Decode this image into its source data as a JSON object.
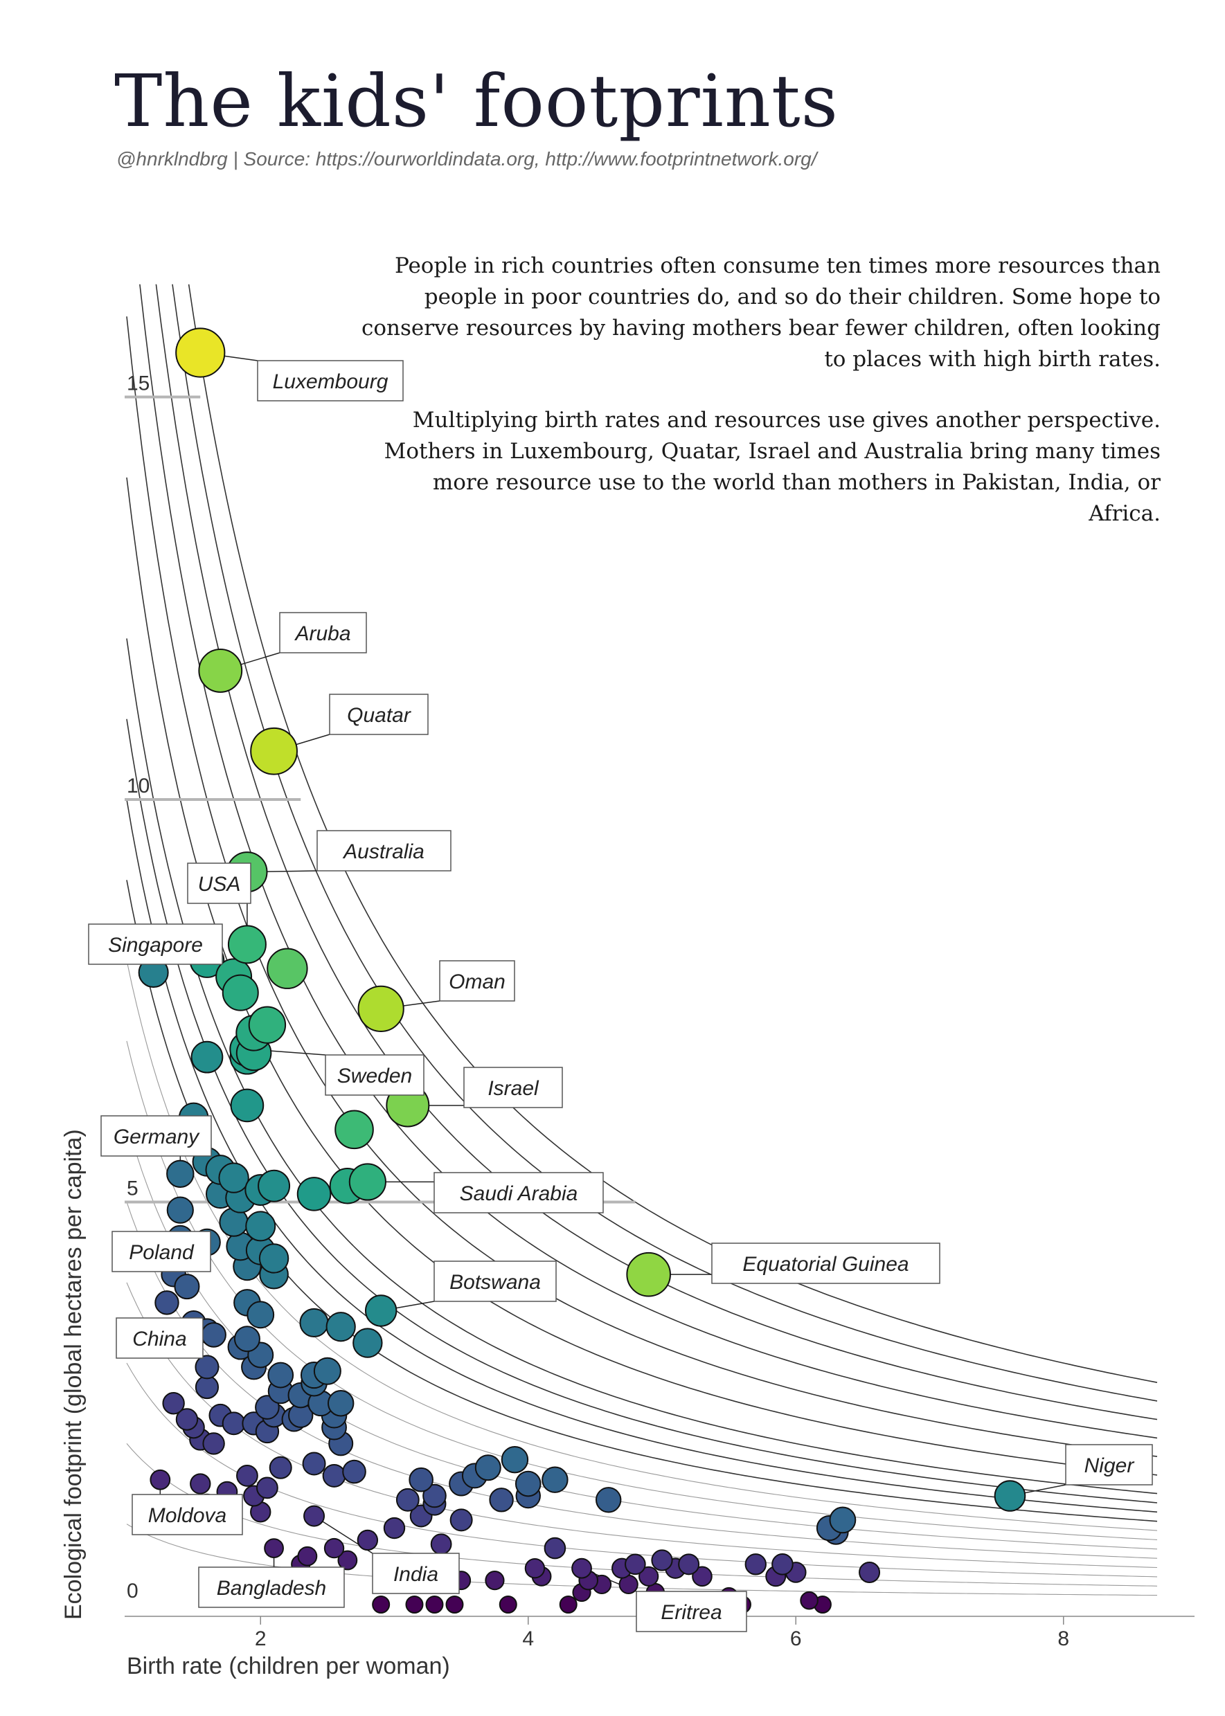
{
  "title": "The kids' footprints",
  "source": "@hnrklndbrg | Source: https://ourworldindata.org, http://www.footprintnetwork.org/",
  "paragraphs": [
    "People in rich countries often consume ten times more resources than people in poor countries do, and so do their children. Some hope to conserve resources by having mothers bear fewer children, often looking to places with high birth rates.",
    "Multiplying birth rates and resources use gives another perspective. Mothers in Luxembourg, Quatar, Israel and Australia bring many times more resource use to the world than mothers in Pakistan, India, or Africa."
  ],
  "chart_data": {
    "type": "scatter",
    "xlabel": "Birth rate (children per woman)",
    "ylabel": "Ecological footprint (global hectares per capita)",
    "xlim": [
      0.8,
      8.7
    ],
    "ylim": [
      0,
      16.4
    ],
    "x_ticks": [
      2,
      4,
      6,
      8
    ],
    "y_ticks": [
      0,
      5,
      10,
      15
    ],
    "iso_curves_product": [
      1,
      2,
      3,
      4,
      5,
      6,
      7,
      8,
      9,
      10,
      11,
      12,
      14,
      16,
      18,
      20,
      22,
      24
    ],
    "color_encoding": "birth rate × footprint (viridis)",
    "colors": {
      "low": "#440154",
      "mid": "#21918c",
      "high": "#fde725",
      "point_stroke": "#111111"
    },
    "labeled_points": [
      {
        "label": "Luxembourg",
        "x": 1.55,
        "y": 15.55
      },
      {
        "label": "Aruba",
        "x": 1.7,
        "y": 11.6
      },
      {
        "label": "Quatar",
        "x": 2.1,
        "y": 10.6
      },
      {
        "label": "Australia",
        "x": 1.9,
        "y": 9.1
      },
      {
        "label": "USA",
        "x": 1.9,
        "y": 8.2
      },
      {
        "label": "Singapore",
        "x": 1.2,
        "y": 7.85
      },
      {
        "label": "Oman",
        "x": 2.9,
        "y": 7.4
      },
      {
        "label": "Sweden",
        "x": 1.9,
        "y": 6.9
      },
      {
        "label": "Israel",
        "x": 3.1,
        "y": 6.2
      },
      {
        "label": "Germany",
        "x": 1.4,
        "y": 5.35
      },
      {
        "label": "Saudi Arabia",
        "x": 2.8,
        "y": 5.25
      },
      {
        "label": "Equatorial Guinea",
        "x": 4.9,
        "y": 4.1
      },
      {
        "label": "Botswana",
        "x": 2.9,
        "y": 3.65
      },
      {
        "label": "Poland",
        "x": 1.35,
        "y": 4.1
      },
      {
        "label": "China",
        "x": 1.6,
        "y": 3.4
      },
      {
        "label": "Niger",
        "x": 7.6,
        "y": 1.35
      },
      {
        "label": "Moldova",
        "x": 1.25,
        "y": 1.55
      },
      {
        "label": "India",
        "x": 2.4,
        "y": 1.1
      },
      {
        "label": "Bangladesh",
        "x": 2.1,
        "y": 0.7
      },
      {
        "label": "Eritrea",
        "x": 4.4,
        "y": 0.45
      }
    ],
    "points": [
      [
        1.55,
        15.55
      ],
      [
        1.7,
        11.6
      ],
      [
        2.1,
        10.6
      ],
      [
        1.9,
        9.1
      ],
      [
        1.9,
        8.2
      ],
      [
        1.2,
        7.85
      ],
      [
        2.9,
        7.4
      ],
      [
        1.9,
        6.9
      ],
      [
        3.1,
        6.2
      ],
      [
        1.4,
        5.35
      ],
      [
        2.8,
        5.25
      ],
      [
        4.9,
        4.1
      ],
      [
        2.9,
        3.65
      ],
      [
        1.35,
        4.1
      ],
      [
        1.6,
        3.4
      ],
      [
        7.6,
        1.35
      ],
      [
        1.25,
        1.55
      ],
      [
        2.4,
        1.1
      ],
      [
        2.1,
        0.7
      ],
      [
        4.4,
        0.45
      ],
      [
        5.9,
        0.5
      ],
      [
        1.6,
        8.0
      ],
      [
        2.2,
        7.9
      ],
      [
        1.8,
        7.8
      ],
      [
        1.85,
        7.6
      ],
      [
        2.05,
        7.2
      ],
      [
        1.95,
        7.1
      ],
      [
        1.95,
        6.85
      ],
      [
        1.6,
        6.8
      ],
      [
        1.9,
        6.8
      ],
      [
        1.9,
        6.2
      ],
      [
        1.5,
        6.05
      ],
      [
        1.5,
        5.75
      ],
      [
        1.6,
        5.5
      ],
      [
        1.7,
        5.4
      ],
      [
        1.8,
        5.3
      ],
      [
        2.0,
        5.15
      ],
      [
        2.1,
        5.2
      ],
      [
        2.4,
        5.1
      ],
      [
        2.65,
        5.2
      ],
      [
        2.7,
        5.9
      ],
      [
        1.7,
        5.1
      ],
      [
        1.85,
        5.05
      ],
      [
        1.4,
        4.9
      ],
      [
        1.8,
        4.75
      ],
      [
        2.0,
        4.7
      ],
      [
        1.4,
        4.55
      ],
      [
        1.6,
        4.5
      ],
      [
        1.85,
        4.45
      ],
      [
        2.0,
        4.4
      ],
      [
        2.1,
        4.3
      ],
      [
        1.9,
        4.2
      ],
      [
        2.1,
        4.1
      ],
      [
        1.45,
        3.95
      ],
      [
        1.3,
        3.75
      ],
      [
        1.9,
        3.75
      ],
      [
        2.0,
        3.6
      ],
      [
        1.5,
        3.5
      ],
      [
        1.4,
        3.3
      ],
      [
        1.9,
        3.3
      ],
      [
        1.65,
        3.35
      ],
      [
        1.85,
        3.2
      ],
      [
        2.4,
        3.5
      ],
      [
        2.6,
        3.45
      ],
      [
        2.8,
        3.25
      ],
      [
        2.0,
        3.1
      ],
      [
        1.95,
        2.95
      ],
      [
        2.15,
        2.85
      ],
      [
        2.4,
        2.85
      ],
      [
        2.5,
        2.9
      ],
      [
        2.4,
        2.75
      ],
      [
        2.3,
        2.6
      ],
      [
        2.15,
        2.65
      ],
      [
        2.45,
        2.5
      ],
      [
        2.3,
        2.35
      ],
      [
        2.55,
        2.35
      ],
      [
        2.6,
        2.5
      ],
      [
        2.55,
        2.2
      ],
      [
        1.6,
        2.95
      ],
      [
        1.6,
        2.7
      ],
      [
        2.1,
        2.35
      ],
      [
        1.95,
        2.25
      ],
      [
        2.05,
        2.15
      ],
      [
        2.25,
        2.3
      ],
      [
        2.05,
        2.45
      ],
      [
        2.6,
        2.0
      ],
      [
        1.8,
        2.25
      ],
      [
        1.7,
        2.35
      ],
      [
        1.5,
        2.2
      ],
      [
        1.55,
        2.05
      ],
      [
        1.35,
        2.5
      ],
      [
        1.45,
        2.3
      ],
      [
        1.65,
        2.0
      ],
      [
        1.9,
        1.6
      ],
      [
        2.15,
        1.7
      ],
      [
        2.4,
        1.75
      ],
      [
        2.55,
        1.6
      ],
      [
        2.7,
        1.65
      ],
      [
        1.55,
        1.5
      ],
      [
        1.75,
        1.4
      ],
      [
        1.95,
        1.35
      ],
      [
        2.05,
        1.45
      ],
      [
        1.6,
        1.25
      ],
      [
        2.0,
        1.15
      ],
      [
        3.2,
        1.55
      ],
      [
        3.3,
        1.35
      ],
      [
        3.5,
        1.5
      ],
      [
        3.6,
        1.6
      ],
      [
        3.7,
        1.7
      ],
      [
        3.9,
        1.8
      ],
      [
        4.0,
        1.5
      ],
      [
        4.2,
        1.55
      ],
      [
        4.0,
        1.35
      ],
      [
        3.8,
        1.3
      ],
      [
        4.6,
        1.3
      ],
      [
        3.1,
        1.3
      ],
      [
        3.2,
        1.1
      ],
      [
        3.5,
        1.05
      ],
      [
        3.3,
        1.25
      ],
      [
        3.0,
        0.95
      ],
      [
        2.8,
        0.8
      ],
      [
        2.55,
        0.7
      ],
      [
        2.65,
        0.55
      ],
      [
        2.35,
        0.6
      ],
      [
        2.3,
        0.5
      ],
      [
        2.5,
        0.35
      ],
      [
        2.2,
        0.25
      ],
      [
        2.3,
        0.15
      ],
      [
        3.35,
        0.75
      ],
      [
        3.3,
        0.5
      ],
      [
        3.3,
        0.0
      ],
      [
        3.5,
        0.3
      ],
      [
        3.75,
        0.3
      ],
      [
        4.05,
        0.45
      ],
      [
        4.2,
        0.7
      ],
      [
        4.1,
        0.35
      ],
      [
        4.4,
        0.15
      ],
      [
        4.45,
        0.3
      ],
      [
        4.55,
        0.25
      ],
      [
        4.7,
        0.45
      ],
      [
        4.8,
        0.5
      ],
      [
        4.9,
        0.35
      ],
      [
        5.0,
        0.55
      ],
      [
        5.1,
        0.45
      ],
      [
        5.2,
        0.5
      ],
      [
        5.3,
        0.35
      ],
      [
        4.75,
        0.25
      ],
      [
        4.95,
        0.15
      ],
      [
        5.5,
        0.1
      ],
      [
        5.7,
        0.5
      ],
      [
        5.85,
        0.35
      ],
      [
        6.0,
        0.4
      ],
      [
        6.3,
        0.9
      ],
      [
        6.55,
        0.4
      ],
      [
        6.1,
        0.05
      ],
      [
        6.35,
        1.05
      ],
      [
        6.25,
        0.95
      ],
      [
        6.2,
        0.0
      ],
      [
        5.6,
        0.0
      ],
      [
        5.05,
        0.0
      ],
      [
        4.3,
        0.0
      ],
      [
        3.85,
        0.0
      ],
      [
        3.45,
        0.0
      ],
      [
        3.15,
        0.0
      ],
      [
        2.9,
        0.0
      ]
    ]
  }
}
